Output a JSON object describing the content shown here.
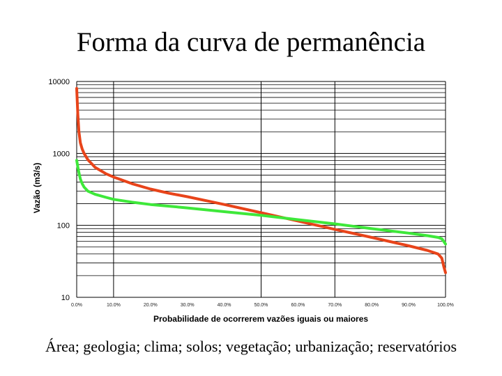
{
  "slide": {
    "title": "Forma da curva de permanência",
    "footer": "Área; geologia; clima; solos; vegetação; urbanização; reservatórios"
  },
  "chart_data": {
    "type": "line",
    "title": "",
    "xlabel": "Probabilidade de ocorrerem vazões iguais ou maiores",
    "ylabel": "Vazão (m3/s)",
    "yscale": "log",
    "ylim": [
      10,
      10000
    ],
    "xlim": [
      0,
      100
    ],
    "y_ticks": [
      "10",
      "100",
      "1000",
      "10000"
    ],
    "x_ticks": [
      "0.0%",
      "10.0%",
      "20.0%",
      "30.0%",
      "40.0%",
      "50.0%",
      "60.0%",
      "70.0%",
      "80.0%",
      "90.0%",
      "100.0%"
    ],
    "grid": true,
    "legend": "none",
    "series": [
      {
        "color": "#e8441a",
        "x": [
          0,
          0.3,
          0.6,
          1,
          1.5,
          2,
          3,
          5,
          8,
          10,
          15,
          20,
          25,
          30,
          40,
          50,
          60,
          70,
          80,
          90,
          95,
          98,
          99,
          99.5,
          100
        ],
        "y": [
          8000,
          3500,
          2000,
          1400,
          1150,
          1000,
          820,
          640,
          520,
          470,
          380,
          320,
          280,
          250,
          195,
          150,
          115,
          88,
          68,
          52,
          45,
          40,
          35,
          27,
          22
        ]
      },
      {
        "color": "#3ee83a",
        "x": [
          0,
          0.3,
          0.6,
          1,
          1.5,
          2,
          3,
          5,
          8,
          10,
          15,
          20,
          25,
          30,
          40,
          50,
          60,
          70,
          80,
          90,
          95,
          98,
          99,
          99.5,
          100
        ],
        "y": [
          800,
          650,
          540,
          440,
          380,
          340,
          300,
          270,
          245,
          230,
          210,
          195,
          185,
          175,
          155,
          138,
          120,
          105,
          90,
          78,
          72,
          68,
          65,
          60,
          55
        ]
      }
    ]
  }
}
